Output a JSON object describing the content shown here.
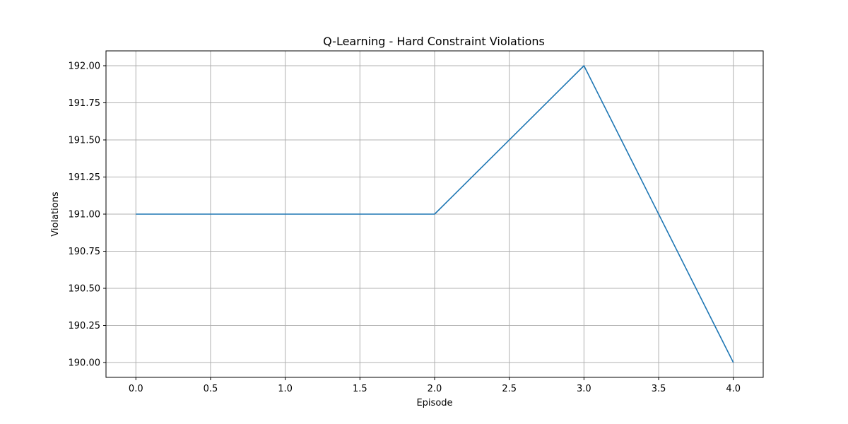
{
  "chart_data": {
    "type": "line",
    "title": "Q-Learning - Hard Constraint Violations",
    "xlabel": "Episode",
    "ylabel": "Violations",
    "xlim": [
      -0.2,
      4.2
    ],
    "ylim": [
      189.9,
      192.1
    ],
    "xticks": [
      0.0,
      0.5,
      1.0,
      1.5,
      2.0,
      2.5,
      3.0,
      3.5,
      4.0
    ],
    "xtick_labels": [
      "0.0",
      "0.5",
      "1.0",
      "1.5",
      "2.0",
      "2.5",
      "3.0",
      "3.5",
      "4.0"
    ],
    "yticks": [
      190.0,
      190.25,
      190.5,
      190.75,
      191.0,
      191.25,
      191.5,
      191.75,
      192.0
    ],
    "ytick_labels": [
      "190.00",
      "190.25",
      "190.50",
      "190.75",
      "191.00",
      "191.25",
      "191.50",
      "191.75",
      "192.00"
    ],
    "grid": true,
    "series": [
      {
        "x": [
          0,
          1,
          2,
          3,
          4
        ],
        "values": [
          191,
          191,
          191,
          192,
          190
        ],
        "color": "#1f77b4"
      }
    ]
  }
}
